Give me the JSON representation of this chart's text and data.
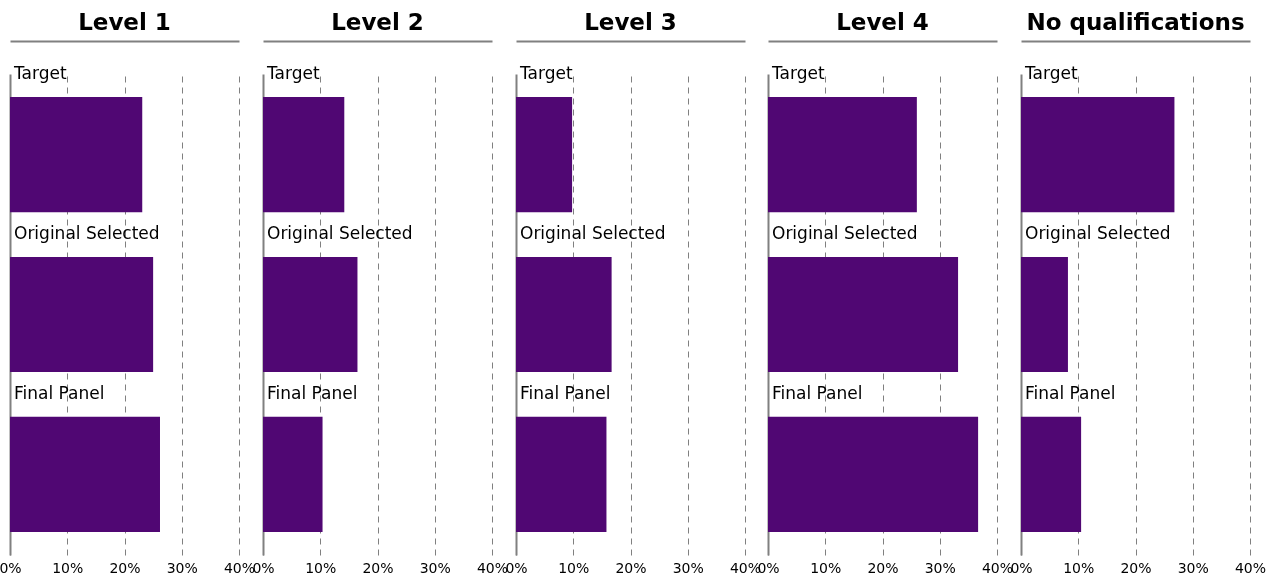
{
  "chart_data": [
    {
      "type": "bar",
      "orientation": "horizontal",
      "title": "Level 1",
      "categories": [
        "Target",
        "Original Selected",
        "Final Panel"
      ],
      "values": [
        23.1,
        25.0,
        26.2
      ],
      "color": "#500773",
      "xlim": [
        0,
        40
      ],
      "xticks": [
        {
          "value": 0,
          "label": "0%"
        },
        {
          "value": 10,
          "label": "10%"
        },
        {
          "value": 20,
          "label": "20%"
        },
        {
          "value": 30,
          "label": "30%"
        },
        {
          "value": 40,
          "label": "40%"
        }
      ],
      "grid": "x"
    },
    {
      "type": "bar",
      "orientation": "horizontal",
      "title": "Level 2",
      "categories": [
        "Target",
        "Original Selected",
        "Final Panel"
      ],
      "values": [
        14.2,
        16.5,
        10.4
      ],
      "color": "#500773",
      "xlim": [
        0,
        40
      ],
      "xticks": [
        {
          "value": 0,
          "label": "0%"
        },
        {
          "value": 10,
          "label": "10%"
        },
        {
          "value": 20,
          "label": "20%"
        },
        {
          "value": 30,
          "label": "30%"
        },
        {
          "value": 40,
          "label": "40%"
        }
      ],
      "grid": "x"
    },
    {
      "type": "bar",
      "orientation": "horizontal",
      "title": "Level 3",
      "categories": [
        "Target",
        "Original Selected",
        "Final Panel"
      ],
      "values": [
        9.8,
        16.7,
        15.8
      ],
      "color": "#500773",
      "xlim": [
        0,
        40
      ],
      "xticks": [
        {
          "value": 0,
          "label": "0%"
        },
        {
          "value": 10,
          "label": "10%"
        },
        {
          "value": 20,
          "label": "20%"
        },
        {
          "value": 30,
          "label": "30%"
        },
        {
          "value": 40,
          "label": "40%"
        }
      ],
      "grid": "x"
    },
    {
      "type": "bar",
      "orientation": "horizontal",
      "title": "Level 4",
      "categories": [
        "Target",
        "Original Selected",
        "Final Panel"
      ],
      "values": [
        26.0,
        33.2,
        36.7
      ],
      "color": "#500773",
      "xlim": [
        0,
        40
      ],
      "xticks": [
        {
          "value": 0,
          "label": "0%"
        },
        {
          "value": 10,
          "label": "10%"
        },
        {
          "value": 20,
          "label": "20%"
        },
        {
          "value": 30,
          "label": "30%"
        },
        {
          "value": 40,
          "label": "40%"
        }
      ],
      "grid": "x"
    },
    {
      "type": "bar",
      "orientation": "horizontal",
      "title": "No qualifications",
      "categories": [
        "Target",
        "Original Selected",
        "Final Panel"
      ],
      "values": [
        26.8,
        8.2,
        10.5
      ],
      "color": "#500773",
      "xlim": [
        0,
        40
      ],
      "xticks": [
        {
          "value": 0,
          "label": "0%"
        },
        {
          "value": 10,
          "label": "10%"
        },
        {
          "value": 20,
          "label": "20%"
        },
        {
          "value": 30,
          "label": "30%"
        },
        {
          "value": 40,
          "label": "40%"
        }
      ],
      "grid": "x"
    }
  ]
}
